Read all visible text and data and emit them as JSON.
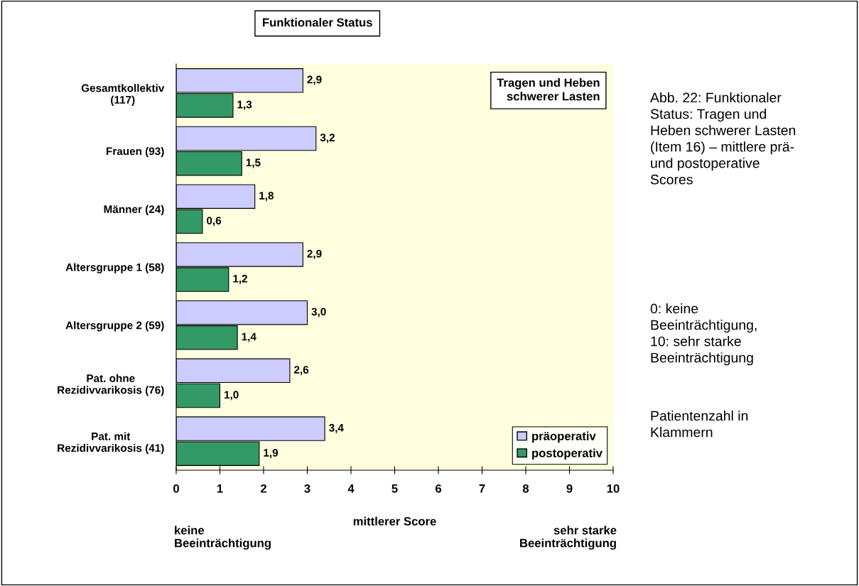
{
  "chart_data": {
    "type": "bar",
    "orientation": "horizontal",
    "title": "Funktionaler Status",
    "xlabel": "mittlerer Score",
    "categories": [
      "Gesamtkollektiv\n(117)",
      "Frauen (93)",
      "Männer (24)",
      "Altersgruppe 1 (58)",
      "Altersgruppe 2 (59)",
      "Pat. ohne\nRezidivvarikosis (76)",
      "Pat. mit\nRezidivvarikosis (41)"
    ],
    "series": [
      {
        "name": "präoperativ",
        "color": "#ccccff",
        "values": [
          2.9,
          3.2,
          1.8,
          2.9,
          3.0,
          2.6,
          3.4
        ],
        "value_labels": [
          "2,9",
          "3,2",
          "1,8",
          "2,9",
          "3,0",
          "2,6",
          "3,4"
        ]
      },
      {
        "name": "postoperativ",
        "color": "#339966",
        "values": [
          1.3,
          1.5,
          0.6,
          1.2,
          1.4,
          1.0,
          1.9
        ],
        "value_labels": [
          "1,3",
          "1,5",
          "0,6",
          "1,2",
          "1,4",
          "1,0",
          "1,9"
        ]
      }
    ],
    "xlim": [
      0,
      10
    ],
    "xticks": [
      0,
      1,
      2,
      3,
      4,
      5,
      6,
      7,
      8,
      9,
      10
    ],
    "grid": false,
    "legend": "bottom right",
    "annotations": [
      "Tragen und Heben\nschwerer Lasten",
      "keine\nBeeinträchtigung",
      "sehr starke\nBeeinträchtigung",
      "Abb. 22: Funktionaler\nStatus: Tragen und\nHeben schwerer Lasten\n(Item 16) – mittlere prä-\nund postoperative\nScores",
      "0: keine\nBeeinträchtigung,\n10: sehr starke\nBeeinträchtigung",
      "Patientenzahl in\nKlammern"
    ]
  }
}
